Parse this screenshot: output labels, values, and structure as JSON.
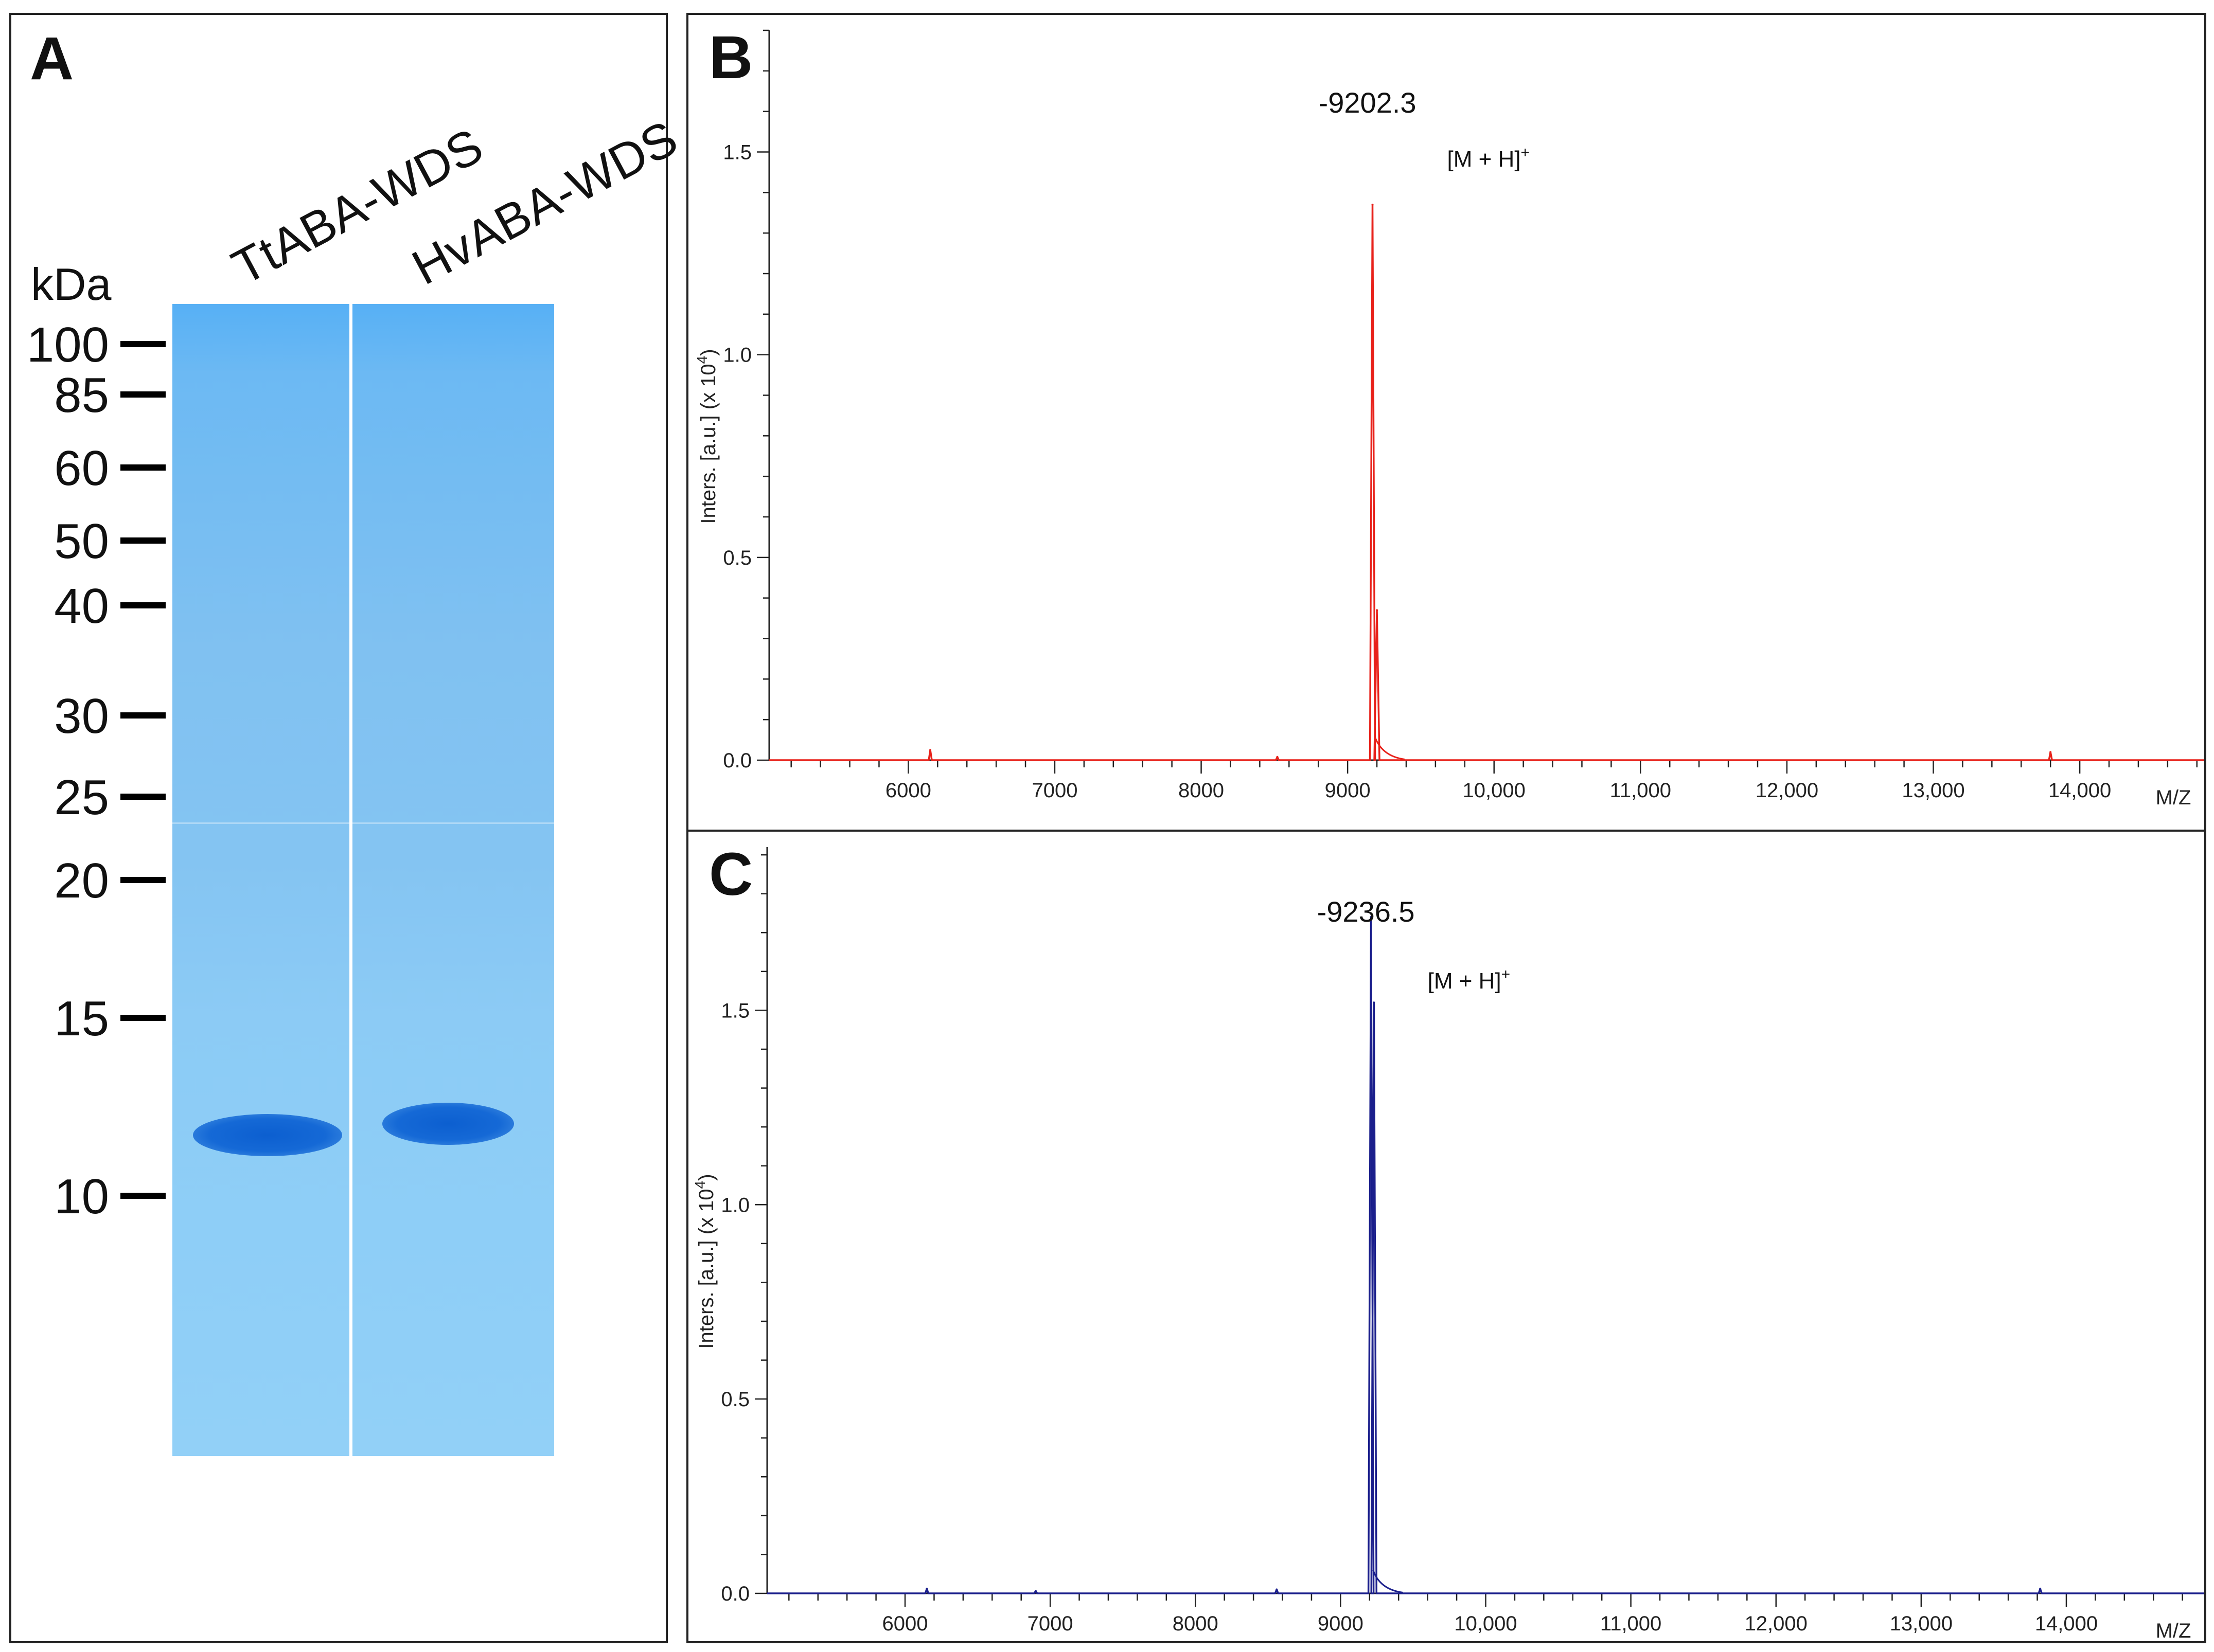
{
  "panel_a": {
    "letter": "A",
    "unit_label": "kDa",
    "lane_labels": [
      "TtABA-WDS",
      "HvABA-WDS"
    ],
    "marker_labels": [
      "100",
      "85",
      "60",
      "50",
      "40",
      "30",
      "25",
      "20",
      "15",
      "10"
    ],
    "marker_kda": [
      100,
      85,
      60,
      50,
      40,
      30,
      25,
      20,
      15,
      10
    ],
    "band_kda": 11.5,
    "colors": {
      "gel": "#7fc0f2",
      "band": "#0c5fd0"
    }
  },
  "panel_b": {
    "letter": "B"
  },
  "panel_c": {
    "letter": "C"
  },
  "chart_data": [
    {
      "type": "line",
      "panel": "B",
      "color": "#e8211a",
      "peak_label": "-9202.3",
      "ion_label": "[M + H]+",
      "ylabel": "Inters. [a.u.] (x 10^4)",
      "xlabel": "M/Z",
      "xlim": [
        5050,
        14850
      ],
      "ylim": [
        0,
        1.8
      ],
      "x_ticks": [
        6000,
        7000,
        8000,
        9000,
        10000,
        11000,
        12000,
        13000,
        14000
      ],
      "x_tick_labels": [
        "6000",
        "7000",
        "8000",
        "9000",
        "10,000",
        "11,000",
        "12,000",
        "13,000",
        "14,000"
      ],
      "y_ticks": [
        0,
        0.5,
        1.0,
        1.5
      ],
      "y_tick_labels": [
        "0.0",
        "0.5",
        "1.0",
        "1.5"
      ],
      "peaks": [
        {
          "x": 6150,
          "y": 0.025
        },
        {
          "x": 8520,
          "y": 0.008
        },
        {
          "x": 9170,
          "y": 1.37
        },
        {
          "x": 9200,
          "y": 0.37
        },
        {
          "x": 13800,
          "y": 0.02
        }
      ]
    },
    {
      "type": "line",
      "panel": "C",
      "color": "#1b1f8c",
      "peak_label": "-9236.5",
      "ion_label": "[M + H]+",
      "ylabel": "Inters. [a.u.] (x 10^4)",
      "xlabel": "M/Z",
      "xlim": [
        5050,
        14950
      ],
      "ylim": [
        0,
        1.92
      ],
      "x_ticks": [
        6000,
        7000,
        8000,
        9000,
        10000,
        11000,
        12000,
        13000,
        14000
      ],
      "x_tick_labels": [
        "6000",
        "7000",
        "8000",
        "9000",
        "10,000",
        "11,000",
        "12,000",
        "13,000",
        "14,000"
      ],
      "y_ticks": [
        0,
        0.5,
        1.0,
        1.5
      ],
      "y_tick_labels": [
        "0.0",
        "0.5",
        "1.0",
        "1.5"
      ],
      "peaks": [
        {
          "x": 6150,
          "y": 0.012
        },
        {
          "x": 6900,
          "y": 0.006
        },
        {
          "x": 8560,
          "y": 0.01
        },
        {
          "x": 9210,
          "y": 1.74
        },
        {
          "x": 9230,
          "y": 1.52
        },
        {
          "x": 13820,
          "y": 0.012
        }
      ]
    }
  ]
}
